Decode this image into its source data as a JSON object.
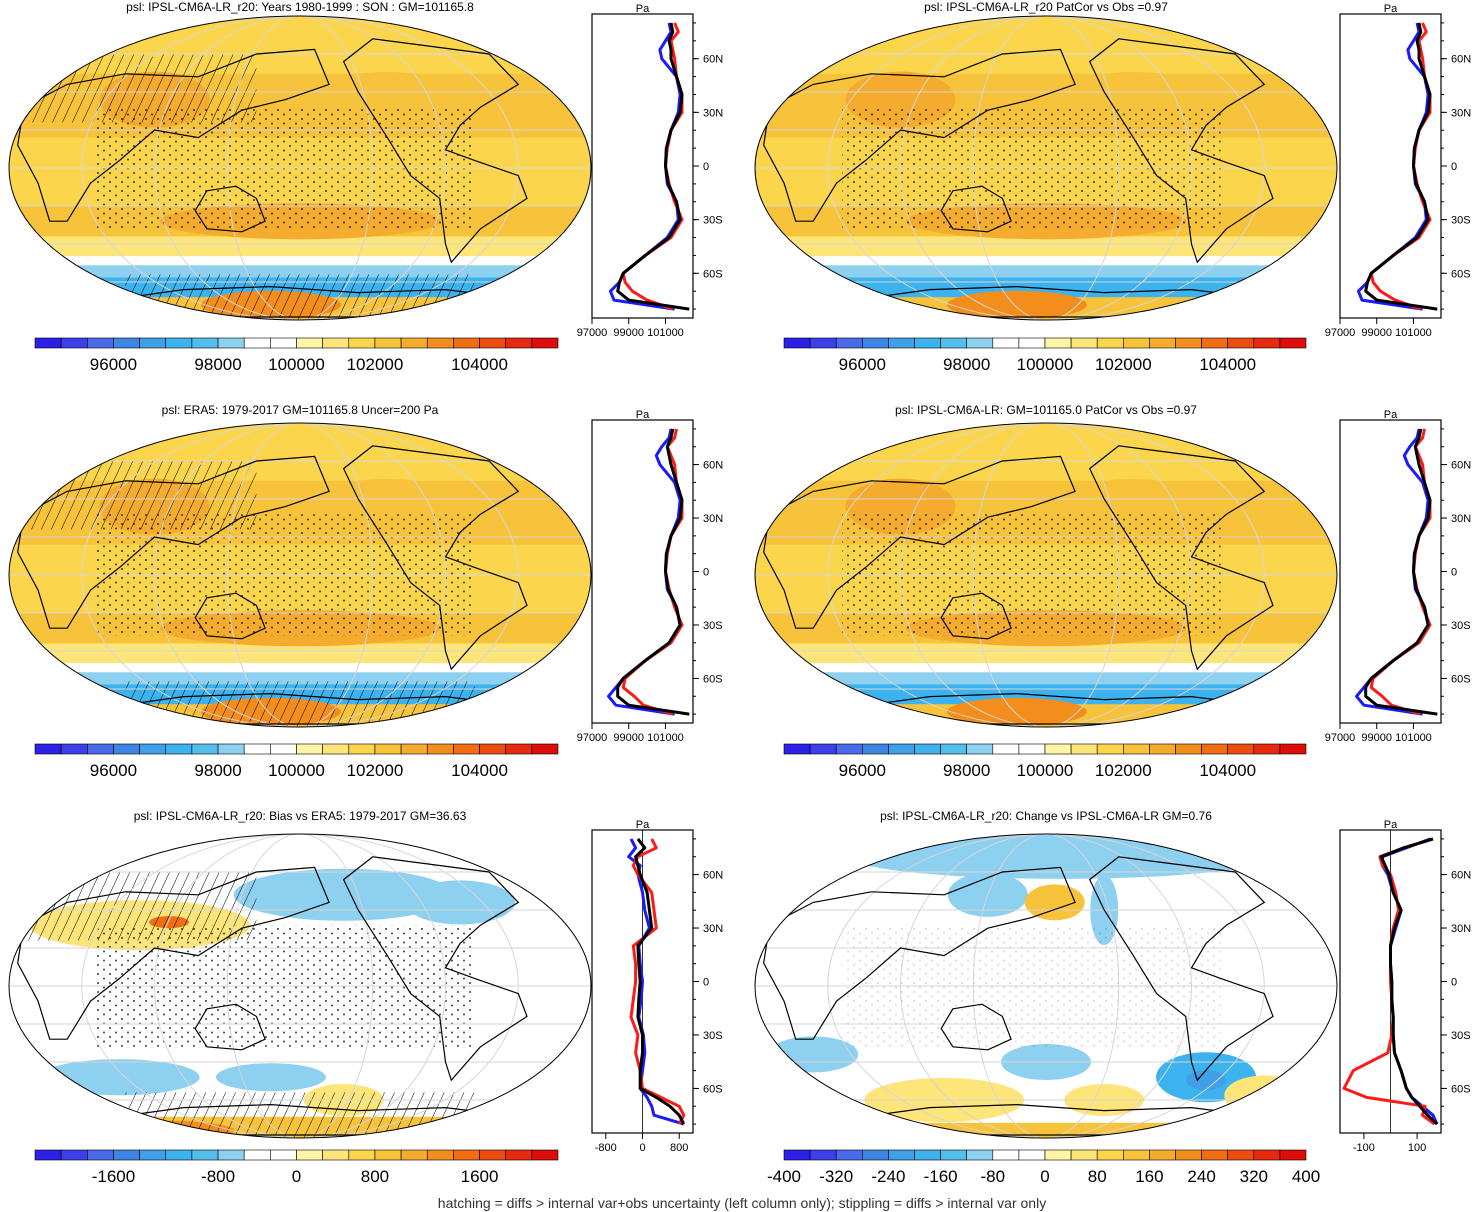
{
  "footnote": "hatching = diffs > internal var+obs uncertainty (left column only); stippling = diffs > internal var only",
  "palette": [
    "#2c1fe6",
    "#3d3fe9",
    "#4a6ae8",
    "#3e86e6",
    "#3f9fe7",
    "#3cb2ee",
    "#53bded",
    "#8dd0ef",
    "#ffffff",
    "#ffffff",
    "#fff5a6",
    "#fde57a",
    "#fbd64c",
    "#f7c33b",
    "#f5ab2d",
    "#f38e1d",
    "#ef6e14",
    "#ec4c10",
    "#e62a0d",
    "#dd0d0c"
  ],
  "lat_labels": [
    "60N",
    "30N",
    "0",
    "30S",
    "60S"
  ],
  "profile_unit": "Pa",
  "chart_data": [
    {
      "id": "p1",
      "type": "heatmap",
      "title": "psl: IPSL-CM6A-LR_r20: Years 1980-1999 : SON : GM=101165.8",
      "colorbar_ticks": [
        "96000",
        "98000",
        "100000",
        "102000",
        "104000"
      ],
      "profile_ticks": [
        "97000",
        "99000",
        "101000"
      ],
      "profile_xlim": [
        97000,
        102500
      ],
      "lat": [
        80,
        75,
        70,
        65,
        60,
        50,
        40,
        30,
        20,
        10,
        0,
        -10,
        -20,
        -30,
        -40,
        -50,
        -60,
        -65,
        -70,
        -75,
        -80
      ],
      "series": [
        {
          "name": "blue",
          "color": "#1a1aff",
          "values": [
            101200,
            101300,
            101000,
            100700,
            100800,
            101600,
            101800,
            101700,
            101300,
            101050,
            101000,
            101100,
            101600,
            101700,
            101100,
            99900,
            98700,
            98500,
            98000,
            98200,
            101500
          ]
        },
        {
          "name": "red",
          "color": "#ff1a1a",
          "values": [
            101500,
            101700,
            101300,
            101400,
            101500,
            101600,
            101900,
            101900,
            101300,
            101100,
            101000,
            101200,
            101500,
            101900,
            101300,
            99900,
            98700,
            98800,
            99200,
            100000,
            101400
          ]
        },
        {
          "name": "black",
          "color": "#000000",
          "values": [
            101300,
            101400,
            101200,
            101300,
            101300,
            101600,
            101900,
            101800,
            101300,
            101050,
            101000,
            101150,
            101600,
            101800,
            101200,
            99900,
            98700,
            98500,
            98400,
            99000,
            102300
          ]
        }
      ]
    },
    {
      "id": "p2",
      "type": "heatmap",
      "title": "psl: IPSL-CM6A-LR_r20 PatCor vs Obs =0.97",
      "colorbar_ticks": [
        "96000",
        "98000",
        "100000",
        "102000",
        "104000"
      ],
      "profile_ticks": [
        "97000",
        "99000",
        "101000"
      ],
      "profile_xlim": [
        97000,
        102500
      ],
      "lat": [
        80,
        75,
        70,
        65,
        60,
        50,
        40,
        30,
        20,
        10,
        0,
        -10,
        -20,
        -30,
        -40,
        -50,
        -60,
        -65,
        -70,
        -75,
        -80
      ],
      "series": [
        {
          "name": "blue",
          "color": "#1a1aff",
          "values": [
            101200,
            101300,
            101000,
            100700,
            100800,
            101600,
            101800,
            101700,
            101300,
            101050,
            101000,
            101100,
            101600,
            101700,
            101100,
            99900,
            98700,
            98500,
            98000,
            98200,
            101500
          ]
        },
        {
          "name": "red",
          "color": "#ff1a1a",
          "values": [
            101500,
            101700,
            101300,
            101400,
            101500,
            101600,
            101900,
            101900,
            101300,
            101100,
            101000,
            101200,
            101500,
            101900,
            101300,
            99900,
            98700,
            98800,
            99200,
            100000,
            101400
          ]
        },
        {
          "name": "black",
          "color": "#000000",
          "values": [
            101300,
            101400,
            101200,
            101300,
            101300,
            101600,
            101900,
            101800,
            101300,
            101050,
            101000,
            101150,
            101600,
            101800,
            101200,
            99900,
            98700,
            98500,
            98400,
            99000,
            102300
          ]
        }
      ]
    },
    {
      "id": "p3",
      "type": "heatmap",
      "title": "psl: ERA5: 1979-2017 GM=101165.8 Uncer=200 Pa",
      "colorbar_ticks": [
        "96000",
        "98000",
        "100000",
        "102000",
        "104000"
      ],
      "profile_ticks": [
        "97000",
        "99000",
        "101000"
      ],
      "profile_xlim": [
        97000,
        102500
      ],
      "lat": [
        80,
        75,
        70,
        65,
        60,
        50,
        40,
        30,
        20,
        10,
        0,
        -10,
        -20,
        -30,
        -40,
        -50,
        -60,
        -65,
        -70,
        -75,
        -80
      ],
      "series": [
        {
          "name": "blue",
          "color": "#1a1aff",
          "values": [
            101300,
            101200,
            100800,
            100500,
            100700,
            101500,
            101800,
            101700,
            101300,
            101050,
            101000,
            101100,
            101600,
            101800,
            101200,
            99900,
            98700,
            98300,
            97900,
            98300,
            101500
          ]
        },
        {
          "name": "red",
          "color": "#ff1a1a",
          "values": [
            101600,
            101500,
            101100,
            101300,
            101500,
            101600,
            101900,
            101900,
            101300,
            101100,
            101000,
            101200,
            101500,
            101900,
            101300,
            99900,
            98800,
            98700,
            99300,
            99800,
            101400
          ]
        },
        {
          "name": "black",
          "color": "#000000",
          "values": [
            101400,
            101300,
            101100,
            101200,
            101300,
            101600,
            101900,
            101800,
            101300,
            101050,
            101000,
            101150,
            101600,
            101800,
            101200,
            99900,
            98700,
            98400,
            98400,
            99000,
            102300
          ]
        }
      ]
    },
    {
      "id": "p4",
      "type": "heatmap",
      "title": "psl: IPSL-CM6A-LR: GM=101165.0 PatCor vs Obs =0.97",
      "colorbar_ticks": [
        "96000",
        "98000",
        "100000",
        "102000",
        "104000"
      ],
      "profile_ticks": [
        "97000",
        "99000",
        "101000"
      ],
      "profile_xlim": [
        97000,
        102500
      ],
      "lat": [
        80,
        75,
        70,
        65,
        60,
        50,
        40,
        30,
        20,
        10,
        0,
        -10,
        -20,
        -30,
        -40,
        -50,
        -60,
        -65,
        -70,
        -75,
        -80
      ],
      "series": [
        {
          "name": "blue",
          "color": "#1a1aff",
          "values": [
            101300,
            101200,
            100800,
            100500,
            100700,
            101500,
            101800,
            101700,
            101300,
            101050,
            101000,
            101100,
            101600,
            101800,
            101200,
            99900,
            98700,
            98300,
            97900,
            98300,
            101500
          ]
        },
        {
          "name": "red",
          "color": "#ff1a1a",
          "values": [
            101600,
            101500,
            101100,
            101300,
            101500,
            101600,
            101900,
            101900,
            101300,
            101100,
            101000,
            101200,
            101500,
            101900,
            101300,
            99900,
            98800,
            98700,
            99300,
            99800,
            101400
          ]
        },
        {
          "name": "black",
          "color": "#000000",
          "values": [
            101400,
            101300,
            101100,
            101200,
            101300,
            101600,
            101900,
            101800,
            101300,
            101050,
            101000,
            101150,
            101600,
            101800,
            101200,
            99900,
            98700,
            98400,
            98400,
            99000,
            102300
          ]
        }
      ]
    },
    {
      "id": "p5",
      "type": "heatmap",
      "title": "psl: IPSL-CM6A-LR_r20: Bias vs ERA5: 1979-2017  GM=36.63",
      "colorbar_ticks": [
        "-1600",
        "-800",
        "0",
        "800",
        "1600"
      ],
      "profile_ticks": [
        "-800",
        "0",
        "800"
      ],
      "profile_xlim": [
        -1100,
        1100
      ],
      "profile_zero": 0,
      "lat": [
        80,
        75,
        70,
        65,
        60,
        50,
        40,
        30,
        20,
        10,
        0,
        -10,
        -20,
        -30,
        -40,
        -50,
        -60,
        -65,
        -70,
        -75,
        -80
      ],
      "series": [
        {
          "name": "blue",
          "color": "#1a1aff",
          "values": [
            -250,
            -150,
            -300,
            -50,
            -100,
            0,
            50,
            150,
            -80,
            -50,
            0,
            -30,
            -80,
            20,
            50,
            0,
            -50,
            100,
            200,
            250,
            900
          ]
        },
        {
          "name": "red",
          "color": "#ff1a1a",
          "values": [
            200,
            300,
            -100,
            -200,
            -100,
            200,
            250,
            300,
            -200,
            -150,
            -150,
            -200,
            -250,
            -100,
            -150,
            -50,
            0,
            400,
            800,
            900,
            800
          ]
        },
        {
          "name": "black",
          "color": "#000000",
          "values": [
            -100,
            50,
            -150,
            -100,
            -50,
            100,
            150,
            200,
            -100,
            -80,
            -50,
            -80,
            -100,
            0,
            0,
            -50,
            -50,
            300,
            600,
            800,
            900
          ]
        }
      ]
    },
    {
      "id": "p6",
      "type": "heatmap",
      "title": "psl: IPSL-CM6A-LR_r20: Change vs IPSL-CM6A-LR GM=0.76",
      "colorbar_ticks": [
        "-400",
        "-320",
        "-240",
        "-160",
        "-80",
        "0",
        "80",
        "160",
        "240",
        "320",
        "400"
      ],
      "profile_ticks": [
        "-100",
        "100"
      ],
      "profile_xlim": [
        -190,
        190
      ],
      "profile_zero": 0,
      "lat": [
        80,
        75,
        70,
        65,
        60,
        50,
        40,
        30,
        20,
        10,
        0,
        -10,
        -20,
        -30,
        -40,
        -50,
        -60,
        -65,
        -70,
        -75,
        -80
      ],
      "series": [
        {
          "name": "blue",
          "color": "#1a1aff",
          "values": [
            150,
            60,
            -30,
            -30,
            -10,
            10,
            40,
            20,
            0,
            0,
            5,
            5,
            10,
            10,
            15,
            40,
            60,
            80,
            120,
            160,
            175
          ]
        },
        {
          "name": "red",
          "color": "#ff1a1a",
          "values": [
            160,
            50,
            -40,
            -30,
            0,
            20,
            30,
            10,
            0,
            0,
            0,
            5,
            10,
            5,
            -10,
            -140,
            -175,
            -90,
            130,
            120,
            165
          ]
        },
        {
          "name": "black",
          "color": "#000000",
          "values": [
            160,
            50,
            -35,
            -20,
            -5,
            10,
            40,
            15,
            0,
            0,
            5,
            5,
            10,
            10,
            15,
            40,
            60,
            80,
            110,
            140,
            175
          ]
        }
      ]
    }
  ]
}
